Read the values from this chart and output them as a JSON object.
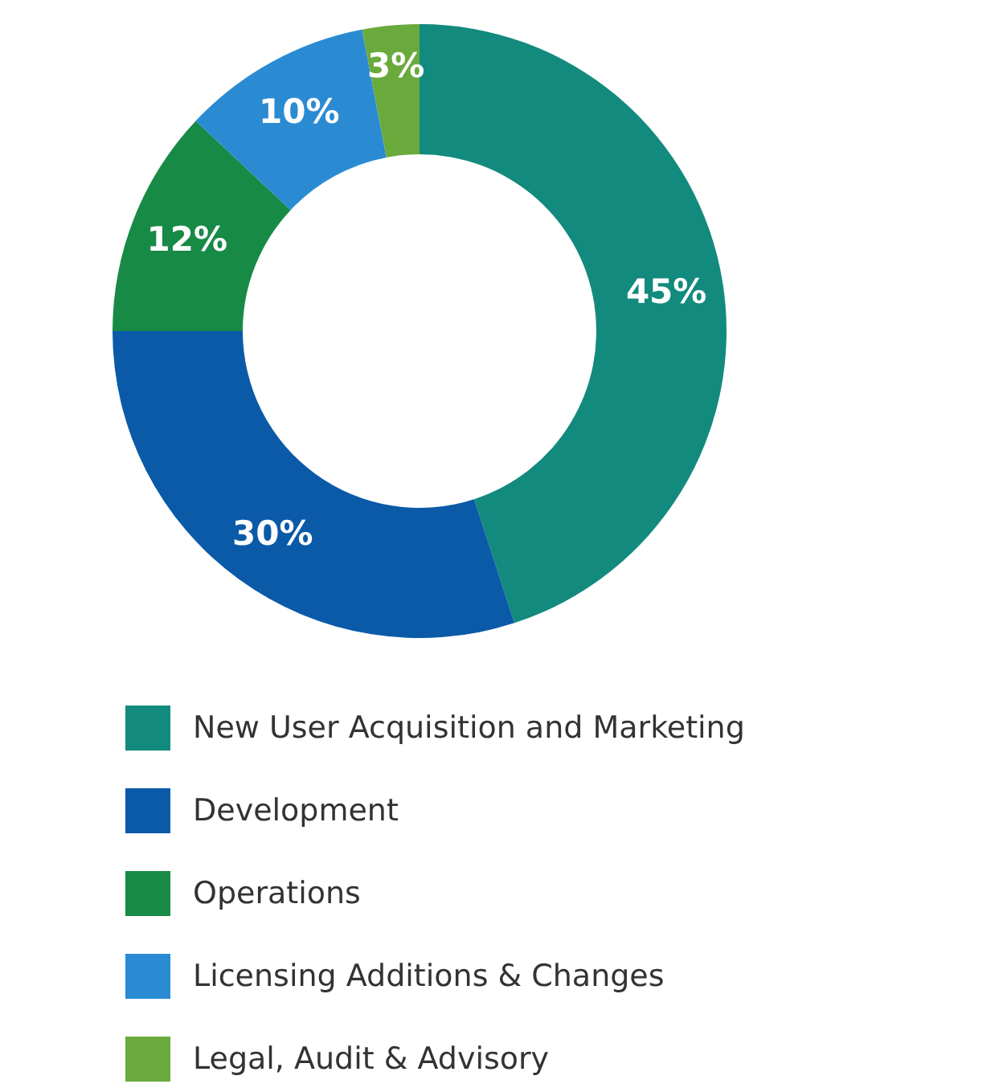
{
  "chart_data": {
    "type": "donut",
    "categories": [
      "New User Acquisition and Marketing",
      "Development",
      "Operations",
      "Licensing Additions & Changes",
      "Legal, Audit & Advisory"
    ],
    "values": [
      45,
      30,
      12,
      10,
      3
    ],
    "colors": [
      "#138a7e",
      "#0b5aa8",
      "#178a46",
      "#2a8bd3",
      "#6aaa3d"
    ],
    "value_labels": [
      "45%",
      "30%",
      "12%",
      "10%",
      "3%"
    ],
    "legend": "bottom"
  }
}
